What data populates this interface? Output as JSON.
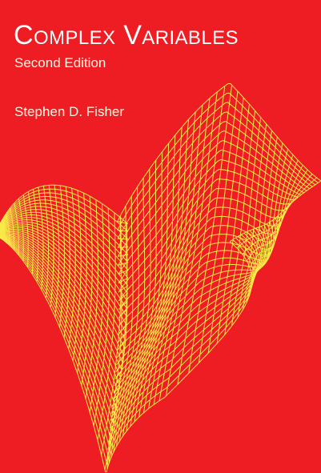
{
  "cover": {
    "title": "Complex Variables",
    "edition": "Second Edition",
    "author": "Stephen D. Fisher",
    "background_color": "#ee1d23",
    "illustration_color": "#f8ea49",
    "illustration": "wireframe-surface"
  }
}
